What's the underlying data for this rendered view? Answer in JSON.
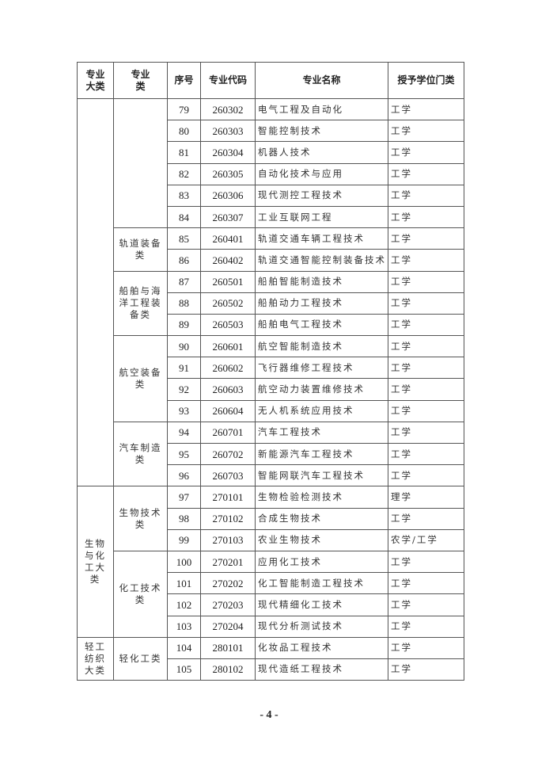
{
  "table": {
    "headers": [
      "专业大类",
      "专业类",
      "序号",
      "专业代码",
      "专业名称",
      "授予学位门类"
    ],
    "big_categories": [
      {
        "name": "",
        "groups": [
          {
            "name": "",
            "majors": [
              {
                "seq": "79",
                "code": "260302",
                "name": "电气工程及自动化",
                "degree": "工学"
              },
              {
                "seq": "80",
                "code": "260303",
                "name": "智能控制技术",
                "degree": "工学"
              },
              {
                "seq": "81",
                "code": "260304",
                "name": "机器人技术",
                "degree": "工学"
              },
              {
                "seq": "82",
                "code": "260305",
                "name": "自动化技术与应用",
                "degree": "工学"
              },
              {
                "seq": "83",
                "code": "260306",
                "name": "现代测控工程技术",
                "degree": "工学"
              },
              {
                "seq": "84",
                "code": "260307",
                "name": "工业互联网工程",
                "degree": "工学"
              }
            ]
          },
          {
            "name": "轨道装备类",
            "majors": [
              {
                "seq": "85",
                "code": "260401",
                "name": "轨道交通车辆工程技术",
                "degree": "工学"
              },
              {
                "seq": "86",
                "code": "260402",
                "name": "轨道交通智能控制装备技术",
                "degree": "工学"
              }
            ]
          },
          {
            "name": "船舶与海洋工程装备类",
            "majors": [
              {
                "seq": "87",
                "code": "260501",
                "name": "船舶智能制造技术",
                "degree": "工学"
              },
              {
                "seq": "88",
                "code": "260502",
                "name": "船舶动力工程技术",
                "degree": "工学"
              },
              {
                "seq": "89",
                "code": "260503",
                "name": "船舶电气工程技术",
                "degree": "工学"
              }
            ]
          },
          {
            "name": "航空装备类",
            "majors": [
              {
                "seq": "90",
                "code": "260601",
                "name": "航空智能制造技术",
                "degree": "工学"
              },
              {
                "seq": "91",
                "code": "260602",
                "name": "飞行器维修工程技术",
                "degree": "工学"
              },
              {
                "seq": "92",
                "code": "260603",
                "name": "航空动力装置维修技术",
                "degree": "工学"
              },
              {
                "seq": "93",
                "code": "260604",
                "name": "无人机系统应用技术",
                "degree": "工学"
              }
            ]
          },
          {
            "name": "汽车制造类",
            "majors": [
              {
                "seq": "94",
                "code": "260701",
                "name": "汽车工程技术",
                "degree": "工学"
              },
              {
                "seq": "95",
                "code": "260702",
                "name": "新能源汽车工程技术",
                "degree": "工学"
              },
              {
                "seq": "96",
                "code": "260703",
                "name": "智能网联汽车工程技术",
                "degree": "工学"
              }
            ]
          }
        ]
      },
      {
        "name": "生物与化工大类",
        "groups": [
          {
            "name": "生物技术类",
            "majors": [
              {
                "seq": "97",
                "code": "270101",
                "name": "生物检验检测技术",
                "degree": "理学"
              },
              {
                "seq": "98",
                "code": "270102",
                "name": "合成生物技术",
                "degree": "工学"
              },
              {
                "seq": "99",
                "code": "270103",
                "name": "农业生物技术",
                "degree": "农学/工学"
              }
            ]
          },
          {
            "name": "化工技术类",
            "majors": [
              {
                "seq": "100",
                "code": "270201",
                "name": "应用化工技术",
                "degree": "工学"
              },
              {
                "seq": "101",
                "code": "270202",
                "name": "化工智能制造工程技术",
                "degree": "工学"
              },
              {
                "seq": "102",
                "code": "270203",
                "name": "现代精细化工技术",
                "degree": "工学"
              },
              {
                "seq": "103",
                "code": "270204",
                "name": "现代分析测试技术",
                "degree": "工学"
              }
            ]
          }
        ]
      },
      {
        "name": "轻工纺织大类",
        "groups": [
          {
            "name": "轻化工类",
            "majors": [
              {
                "seq": "104",
                "code": "280101",
                "name": "化妆品工程技术",
                "degree": "工学"
              },
              {
                "seq": "105",
                "code": "280102",
                "name": "现代造纸工程技术",
                "degree": "工学"
              }
            ]
          }
        ]
      }
    ]
  },
  "page_number": "- 4 -"
}
